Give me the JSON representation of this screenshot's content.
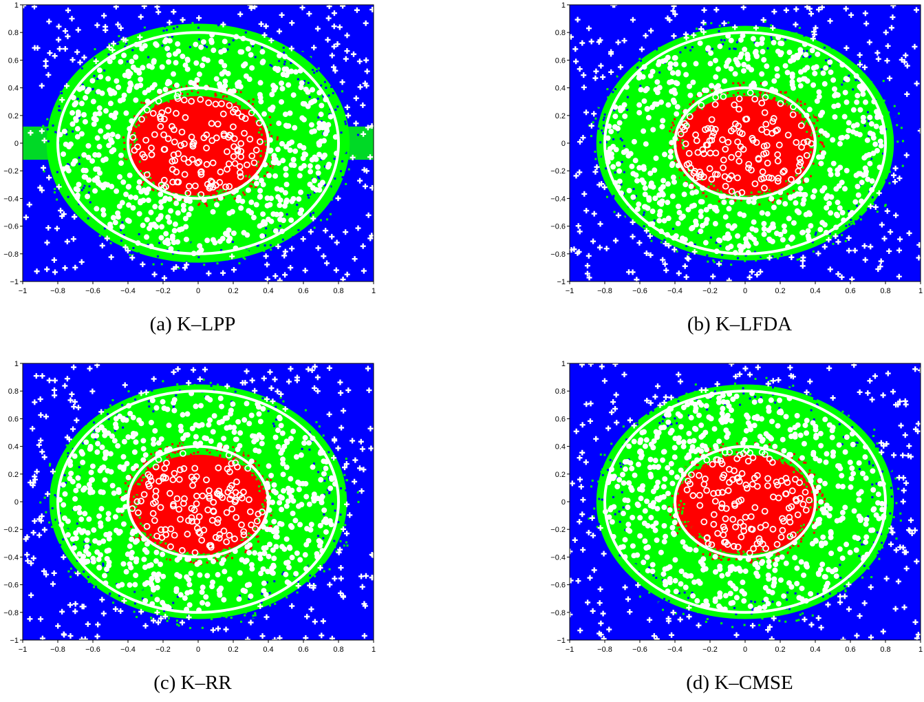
{
  "figure": {
    "panels": [
      {
        "caption": "(a) K–LPP"
      },
      {
        "caption": "(b) K–LFDA"
      },
      {
        "caption": "(c) K–RR"
      },
      {
        "caption": "(d) K–CMSE"
      }
    ]
  },
  "colors": {
    "outer_region": "#0000ff",
    "middle_region": "#00ff00",
    "inner_region": "#ff0000",
    "boundaries_and_markers": "#ffffff",
    "axis": "#000000"
  },
  "chart_data": [
    {
      "type": "scatter",
      "subtype": "decision-region map with true-boundary circles",
      "title": "",
      "xlabel": "",
      "ylabel": "",
      "xlim": [
        -1,
        1
      ],
      "ylim": [
        -1,
        1
      ],
      "xticks": [
        -1,
        -0.8,
        -0.6,
        -0.4,
        -0.2,
        0,
        0.2,
        0.4,
        0.6,
        0.8,
        1
      ],
      "yticks": [
        -1,
        -0.8,
        -0.6,
        -0.4,
        -0.2,
        0,
        0.2,
        0.4,
        0.6,
        0.8,
        1
      ],
      "xtick_labels": [
        "−1",
        "−0.8",
        "−0.6",
        "−0.4",
        "−0.2",
        "0",
        "0.2",
        "0.4",
        "0.6",
        "0.8",
        "1"
      ],
      "ytick_labels": [
        "−1",
        "−0.8",
        "−0.6",
        "−0.4",
        "−0.2",
        "0",
        "0.2",
        "0.4",
        "0.6",
        "0.8",
        "1"
      ],
      "boundaries": [
        {
          "shape": "circle",
          "radius": 0.4
        },
        {
          "shape": "circle",
          "radius": 0.8
        }
      ],
      "classes": [
        {
          "region_color": "inner_region",
          "marker": "o",
          "location": "inside r=0.4"
        },
        {
          "region_color": "middle_region",
          "marker": "filled dot",
          "location": "0.4 < r < 0.8"
        },
        {
          "region_color": "outer_region",
          "marker": "+",
          "location": "outside r=0.8"
        }
      ]
    },
    {
      "type": "scatter",
      "subtype": "decision-region map with true-boundary circles",
      "title": "",
      "xlabel": "",
      "ylabel": "",
      "xlim": [
        -1,
        1
      ],
      "ylim": [
        -1,
        1
      ],
      "xticks": [
        -1,
        -0.8,
        -0.6,
        -0.4,
        -0.2,
        0,
        0.2,
        0.4,
        0.6,
        0.8,
        1
      ],
      "yticks": [
        -1,
        -0.8,
        -0.6,
        -0.4,
        -0.2,
        0,
        0.2,
        0.4,
        0.6,
        0.8,
        1
      ],
      "xtick_labels": [
        "−1",
        "−0.8",
        "−0.6",
        "−0.4",
        "−0.2",
        "0",
        "0.2",
        "0.4",
        "0.6",
        "0.8",
        "1"
      ],
      "ytick_labels": [
        "−1",
        "−0.8",
        "−0.6",
        "−0.4",
        "−0.2",
        "0",
        "0.2",
        "0.4",
        "0.6",
        "0.8",
        "1"
      ],
      "boundaries": [
        {
          "shape": "circle",
          "radius": 0.4
        },
        {
          "shape": "circle",
          "radius": 0.8
        }
      ]
    },
    {
      "type": "scatter",
      "subtype": "decision-region map with true-boundary circles",
      "title": "",
      "xlabel": "",
      "ylabel": "",
      "xlim": [
        -1,
        1
      ],
      "ylim": [
        -1,
        1
      ],
      "xticks": [
        -1,
        -0.8,
        -0.6,
        -0.4,
        -0.2,
        0,
        0.2,
        0.4,
        0.6,
        0.8,
        1
      ],
      "yticks": [
        -1,
        -0.8,
        -0.6,
        -0.4,
        -0.2,
        0,
        0.2,
        0.4,
        0.6,
        0.8,
        1
      ],
      "xtick_labels": [
        "−1",
        "−0.8",
        "−0.6",
        "−0.4",
        "−0.2",
        "0",
        "0.2",
        "0.4",
        "0.6",
        "0.8",
        "1"
      ],
      "ytick_labels": [
        "−1",
        "−0.8",
        "−0.6",
        "−0.4",
        "−0.2",
        "0",
        "0.2",
        "0.4",
        "0.6",
        "0.8",
        "1"
      ],
      "boundaries": [
        {
          "shape": "circle",
          "radius": 0.4
        },
        {
          "shape": "circle",
          "radius": 0.8
        }
      ]
    },
    {
      "type": "scatter",
      "subtype": "decision-region map with true-boundary circles",
      "title": "",
      "xlabel": "",
      "ylabel": "",
      "xlim": [
        -1,
        1
      ],
      "ylim": [
        -1,
        1
      ],
      "xticks": [
        -1,
        -0.8,
        -0.6,
        -0.4,
        -0.2,
        0,
        0.2,
        0.4,
        0.6,
        0.8,
        1
      ],
      "yticks": [
        -1,
        -0.8,
        -0.6,
        -0.4,
        -0.2,
        0,
        0.2,
        0.4,
        0.6,
        0.8,
        1
      ],
      "xtick_labels": [
        "−1",
        "−0.8",
        "−0.6",
        "−0.4",
        "−0.2",
        "0",
        "0.2",
        "0.4",
        "0.6",
        "0.8",
        "1"
      ],
      "ytick_labels": [
        "−1",
        "−0.8",
        "−0.6",
        "−0.4",
        "−0.2",
        "0",
        "0.2",
        "0.4",
        "0.6",
        "0.8",
        "1"
      ],
      "boundaries": [
        {
          "shape": "circle",
          "radius": 0.4
        },
        {
          "shape": "circle",
          "radius": 0.8
        }
      ]
    }
  ]
}
